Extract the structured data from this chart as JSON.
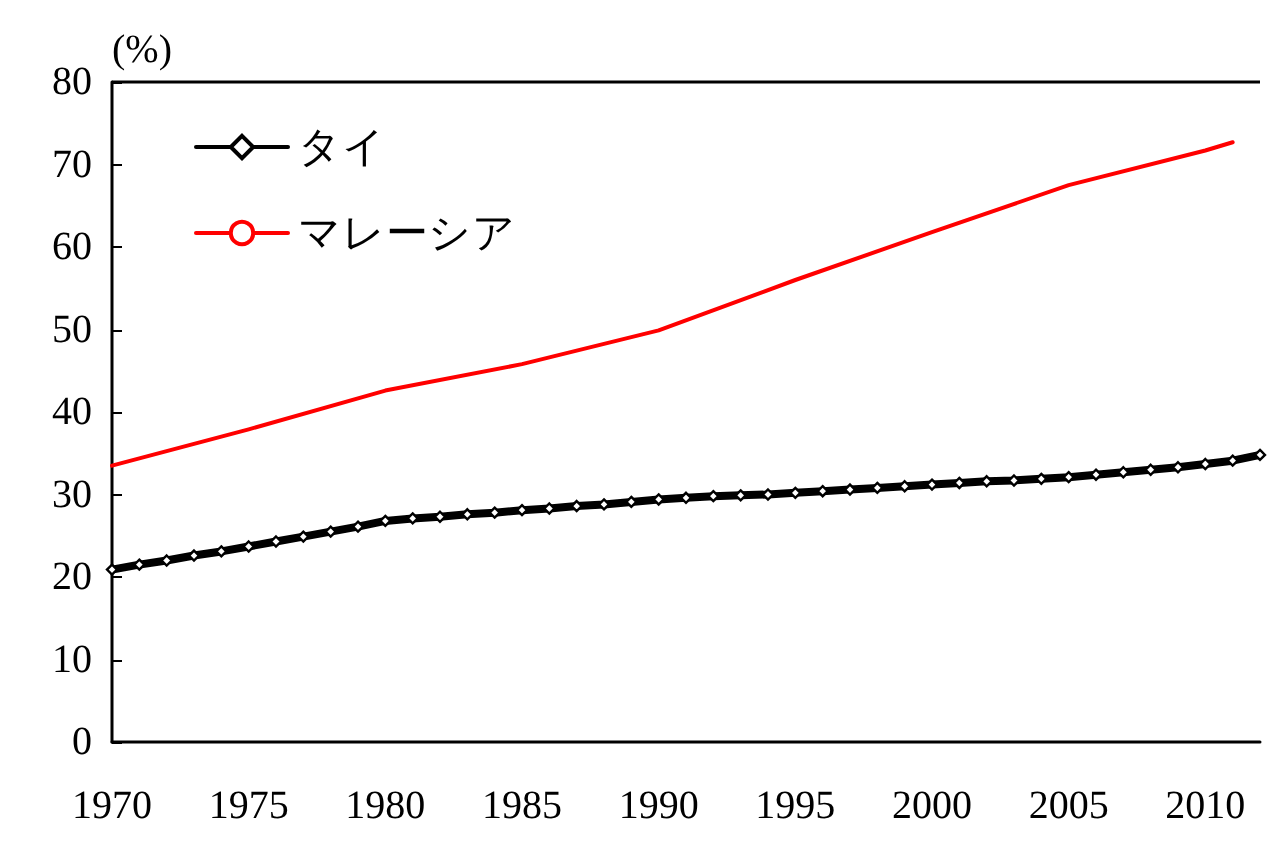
{
  "chart_data": {
    "type": "line",
    "ylabel": "(%)",
    "xlim": [
      1970,
      2012
    ],
    "xticks": [
      1970,
      1975,
      1980,
      1985,
      1990,
      1995,
      2000,
      2005,
      2010
    ],
    "ylim": [
      0,
      80
    ],
    "yticks": [
      0,
      10,
      20,
      30,
      40,
      50,
      60,
      70,
      80
    ],
    "grid": false,
    "legend": "top left",
    "series": [
      {
        "name": "タイ",
        "color": "#000000",
        "marker": "diamond",
        "x": [
          1970,
          1971,
          1972,
          1973,
          1974,
          1975,
          1976,
          1977,
          1978,
          1979,
          1980,
          1981,
          1982,
          1983,
          1984,
          1985,
          1986,
          1987,
          1988,
          1989,
          1990,
          1991,
          1992,
          1993,
          1994,
          1995,
          1996,
          1997,
          1998,
          1999,
          2000,
          2001,
          2002,
          2003,
          2004,
          2005,
          2006,
          2007,
          2008,
          2009,
          2010,
          2011,
          2012
        ],
        "values": [
          20.9,
          21.5,
          22.0,
          22.6,
          23.1,
          23.7,
          24.3,
          24.9,
          25.5,
          26.1,
          26.8,
          27.1,
          27.3,
          27.6,
          27.8,
          28.1,
          28.3,
          28.6,
          28.8,
          29.1,
          29.4,
          29.6,
          29.8,
          29.9,
          30.0,
          30.2,
          30.4,
          30.6,
          30.8,
          31.0,
          31.2,
          31.4,
          31.6,
          31.7,
          31.9,
          32.1,
          32.4,
          32.7,
          33.0,
          33.3,
          33.7,
          34.1,
          34.8
        ]
      },
      {
        "name": "マレーシア",
        "color": "#ff0000",
        "marker": "none",
        "x": [
          1970,
          1975,
          1980,
          1985,
          1990,
          1995,
          2000,
          2005,
          2010,
          2011
        ],
        "values": [
          33.5,
          37.9,
          42.6,
          45.8,
          49.9,
          56.0,
          61.8,
          67.5,
          71.7,
          72.7
        ]
      }
    ]
  }
}
